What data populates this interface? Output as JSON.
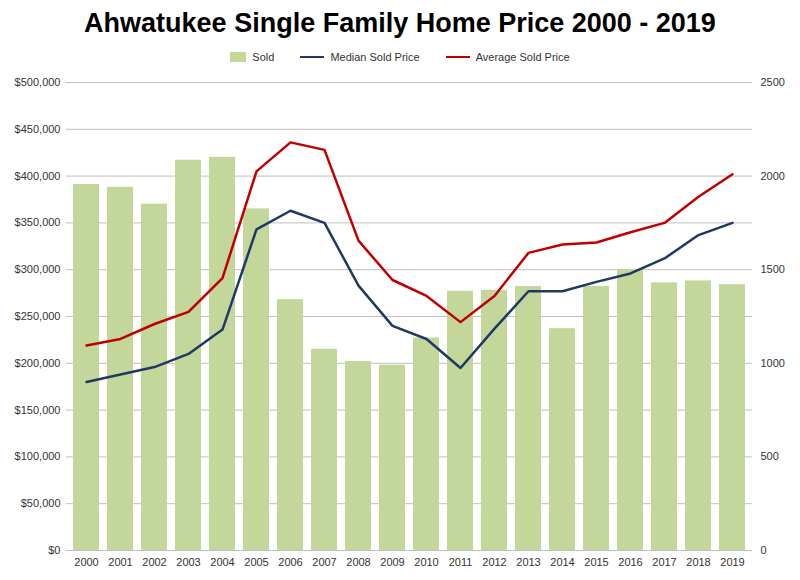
{
  "chart_data": {
    "type": "bar",
    "title": "Ahwatukee Single Family Home Price 2000 - 2019",
    "categories": [
      "2000",
      "2001",
      "2002",
      "2003",
      "2004",
      "2005",
      "2006",
      "2007",
      "2008",
      "2009",
      "2010",
      "2011",
      "2012",
      "2013",
      "2014",
      "2015",
      "2016",
      "2017",
      "2018",
      "2019"
    ],
    "series": [
      {
        "name": "Sold",
        "type": "bar",
        "axis": "y2",
        "color": "#c4d79b",
        "values": [
          1955,
          1940,
          1850,
          2085,
          2100,
          1825,
          1340,
          1075,
          1010,
          990,
          1135,
          1385,
          1390,
          1410,
          1185,
          1410,
          1500,
          1430,
          1440,
          1420
        ]
      },
      {
        "name": "Median Sold Price",
        "type": "line",
        "color": "#1f3864",
        "values": [
          180000,
          188000,
          196000,
          210000,
          236000,
          343000,
          363000,
          350000,
          283000,
          240000,
          226000,
          195000,
          237000,
          277000,
          277000,
          287000,
          296000,
          312000,
          337000,
          350000
        ]
      },
      {
        "name": "Average Sold Price",
        "type": "line",
        "color": "#c00000",
        "values": [
          219000,
          226000,
          242000,
          255000,
          291000,
          405000,
          436000,
          428000,
          331000,
          289000,
          272000,
          244000,
          272000,
          318000,
          327000,
          329000,
          340000,
          350000,
          378000,
          402000
        ]
      }
    ],
    "ylim": [
      0,
      500000
    ],
    "yticks": [
      {
        "value": 0,
        "label": "$0"
      },
      {
        "value": 50000,
        "label": "$50,000"
      },
      {
        "value": 100000,
        "label": "$100,000"
      },
      {
        "value": 150000,
        "label": "$150,000"
      },
      {
        "value": 200000,
        "label": "$200,000"
      },
      {
        "value": 250000,
        "label": "$250,000"
      },
      {
        "value": 300000,
        "label": "$300,000"
      },
      {
        "value": 350000,
        "label": "$350,000"
      },
      {
        "value": 400000,
        "label": "$400,000"
      },
      {
        "value": 450000,
        "label": "$450,000"
      },
      {
        "value": 500000,
        "label": "$500,000"
      }
    ],
    "y2lim": [
      0,
      2500
    ],
    "y2ticks": [
      0,
      500,
      1000,
      1500,
      2000,
      2500
    ],
    "grid": true,
    "legend": "top"
  }
}
